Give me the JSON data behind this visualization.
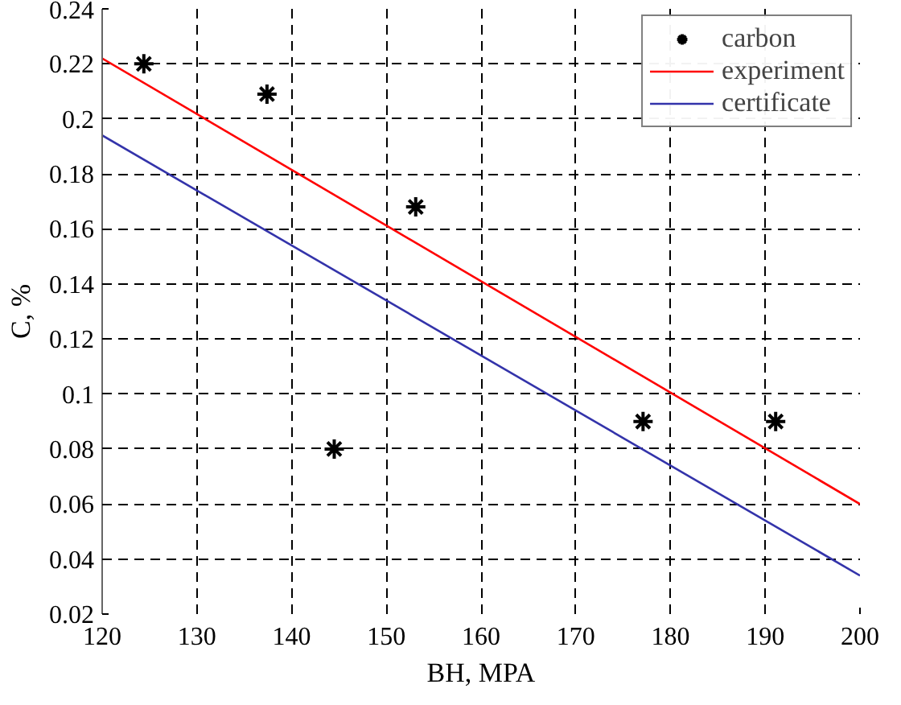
{
  "chart_data": {
    "type": "scatter",
    "xlabel": "BH, MPA",
    "ylabel": "C, %",
    "xlim": [
      120,
      200
    ],
    "xticks": [
      120,
      130,
      140,
      150,
      160,
      170,
      180,
      190,
      200
    ],
    "ylim": [
      0.02,
      0.24
    ],
    "yticks": [
      0.02,
      0.04,
      0.06,
      0.08,
      0.1,
      0.12,
      0.14,
      0.16,
      0.18,
      0.2,
      0.22,
      0.24
    ],
    "grid": true,
    "legend": "top right",
    "series": [
      {
        "name": "carbon",
        "marker": "cross",
        "color": "#000000",
        "x": [
          124.4,
          137.4,
          153.1,
          144.5,
          177.1,
          191.1
        ],
        "values": [
          0.22,
          0.209,
          0.168,
          0.08,
          0.09,
          0.09
        ]
      },
      {
        "name": "experiment",
        "type": "line",
        "color": "#ff0000",
        "x": [
          120,
          200
        ],
        "values": [
          0.222,
          0.06
        ]
      },
      {
        "name": "certificate",
        "type": "line",
        "color": "#3333aa",
        "x": [
          120,
          200
        ],
        "values": [
          0.194,
          0.034
        ]
      }
    ]
  }
}
